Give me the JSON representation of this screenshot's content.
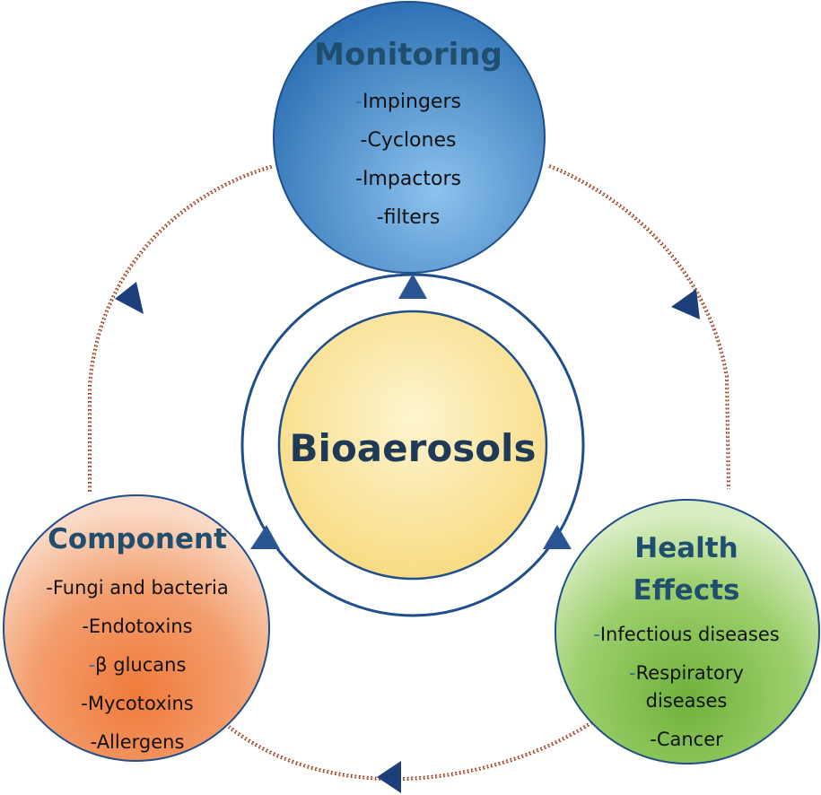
{
  "center": {
    "label": "Bioaerosols"
  },
  "monitoring": {
    "title": "Monitoring",
    "items": [
      "Impingers",
      "Cyclones",
      "Impactors",
      "filters"
    ]
  },
  "component": {
    "title": "Component",
    "items": [
      "Fungi and bacteria",
      "Endotoxins",
      "β glucans",
      "Mycotoxins",
      "Allergens"
    ]
  },
  "health": {
    "title_line1": "Health",
    "title_line2": "Effects",
    "items": [
      "Infectious diseases",
      "Respiratory diseases",
      "Cancer"
    ]
  },
  "colors": {
    "monitoring_fill": "#4a8fcf",
    "component_fill": "#ef9056",
    "health_fill": "#8fc45a",
    "center_fill": "#fbe6a0",
    "ring": "#1f4e8c",
    "arrow": "#2a4f8f",
    "dotted": "#9c3d1c"
  }
}
